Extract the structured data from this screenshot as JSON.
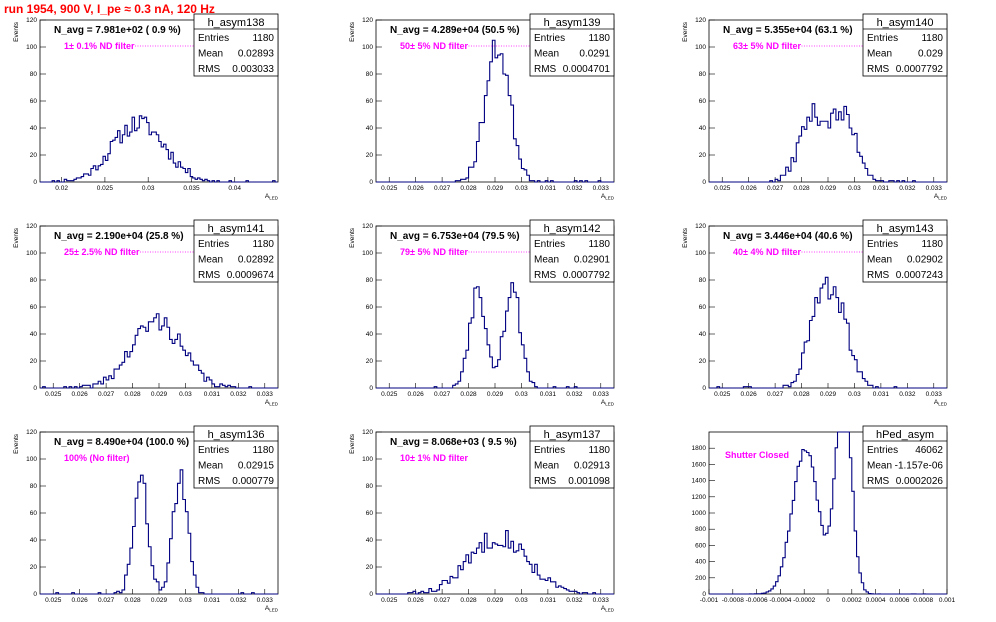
{
  "title": "run 1954,   900 V, I_pe ≈ 0.3 nA, 120 Hz",
  "colors": {
    "line": "#000080",
    "title": "#ff0000",
    "annotation": "#ff00ff"
  },
  "stat_labels": [
    "Entries",
    "Mean",
    "RMS"
  ],
  "chart_data": [
    {
      "type": "bar",
      "name": "h_asym138",
      "navg": "N_avg = 7.981e+02 ( 0.9 %)",
      "filter": "1± 0.1% ND filter",
      "entries": "1180",
      "mean": "0.02893",
      "rms": "0.003033",
      "xlabel": "A_LED",
      "ylabel": "Events",
      "xlim": [
        0.0175,
        0.045
      ],
      "ylim": [
        0,
        120
      ],
      "xticks": [
        0.02,
        0.025,
        0.03,
        0.035,
        0.04
      ],
      "xtick_labels": [
        "0.02",
        "0.025",
        "0.03",
        "0.035",
        "0.04"
      ],
      "yticks": [
        0,
        20,
        40,
        60,
        80,
        100,
        120
      ],
      "shape": {
        "mode": "single",
        "m": 0.02893,
        "s": 0.003033,
        "n": 1180,
        "bin": 0.00028,
        "seed": 11
      }
    },
    {
      "type": "bar",
      "name": "h_asym139",
      "navg": "N_avg = 4.289e+04 (50.5 %)",
      "filter": "50± 5% ND filter",
      "entries": "1180",
      "mean": "0.0291",
      "rms": "0.0004701",
      "xlabel": "A_LED",
      "ylabel": "Events",
      "xlim": [
        0.0245,
        0.0335
      ],
      "ylim": [
        0,
        120
      ],
      "xticks": [
        0.025,
        0.026,
        0.027,
        0.028,
        0.029,
        0.03,
        0.031,
        0.032,
        0.033
      ],
      "xtick_labels": [
        "0.025",
        "0.026",
        "0.027",
        "0.028",
        "0.029",
        "0.03",
        "0.031",
        "0.032",
        "0.033"
      ],
      "yticks": [
        0,
        20,
        40,
        60,
        80,
        100,
        120
      ],
      "shape": {
        "mode": "single",
        "m": 0.0291,
        "s": 0.00047,
        "n": 1180,
        "bin": 0.0001,
        "seed": 23
      }
    },
    {
      "type": "bar",
      "name": "h_asym140",
      "navg": "N_avg = 5.355e+04 (63.1 %)",
      "filter": "63± 5% ND filter",
      "entries": "1180",
      "mean": "0.029",
      "rms": "0.0007792",
      "xlabel": "A_LED",
      "ylabel": "Events",
      "xlim": [
        0.0245,
        0.0335
      ],
      "ylim": [
        0,
        120
      ],
      "xticks": [
        0.025,
        0.026,
        0.027,
        0.028,
        0.029,
        0.03,
        0.031,
        0.032,
        0.033
      ],
      "xtick_labels": [
        "0.025",
        "0.026",
        "0.027",
        "0.028",
        "0.029",
        "0.03",
        "0.031",
        "0.032",
        "0.033"
      ],
      "yticks": [
        0,
        20,
        40,
        60,
        80,
        100,
        120
      ],
      "shape": {
        "mode": "double",
        "m1": 0.0284,
        "m2": 0.0296,
        "s": 0.0005,
        "n": 1180,
        "bin": 0.0001,
        "seed": 37
      }
    },
    {
      "type": "bar",
      "name": "h_asym141",
      "navg": "N_avg = 2.190e+04 (25.8 %)",
      "filter": "25± 2.5% ND filter",
      "entries": "1180",
      "mean": "0.02892",
      "rms": "0.0009674",
      "xlabel": "A_LED",
      "ylabel": "Events",
      "xlim": [
        0.0245,
        0.0335
      ],
      "ylim": [
        0,
        120
      ],
      "xticks": [
        0.025,
        0.026,
        0.027,
        0.028,
        0.029,
        0.03,
        0.031,
        0.032,
        0.033
      ],
      "xtick_labels": [
        "0.025",
        "0.026",
        "0.027",
        "0.028",
        "0.029",
        "0.03",
        "0.031",
        "0.032",
        "0.033"
      ],
      "yticks": [
        0,
        20,
        40,
        60,
        80,
        100,
        120
      ],
      "shape": {
        "mode": "single",
        "m": 0.02892,
        "s": 0.00095,
        "n": 1180,
        "bin": 0.0001,
        "seed": 41
      }
    },
    {
      "type": "bar",
      "name": "h_asym142",
      "navg": "N_avg = 6.753e+04 (79.5 %)",
      "filter": "79± 5% ND filter",
      "entries": "1180",
      "mean": "0.02901",
      "rms": "0.0007792",
      "xlabel": "A_LED",
      "ylabel": "Events",
      "xlim": [
        0.0245,
        0.0335
      ],
      "ylim": [
        0,
        120
      ],
      "xticks": [
        0.025,
        0.026,
        0.027,
        0.028,
        0.029,
        0.03,
        0.031,
        0.032,
        0.033
      ],
      "xtick_labels": [
        "0.025",
        "0.026",
        "0.027",
        "0.028",
        "0.029",
        "0.03",
        "0.031",
        "0.032",
        "0.033"
      ],
      "yticks": [
        0,
        20,
        40,
        60,
        80,
        100,
        120
      ],
      "shape": {
        "mode": "double",
        "m1": 0.02835,
        "m2": 0.02965,
        "s": 0.00032,
        "n": 1180,
        "bin": 0.0001,
        "seed": 53
      }
    },
    {
      "type": "bar",
      "name": "h_asym143",
      "navg": "N_avg = 3.446e+04 (40.6 %)",
      "filter": "40± 4% ND filter",
      "entries": "1180",
      "mean": "0.02902",
      "rms": "0.0007243",
      "xlabel": "A_LED",
      "ylabel": "Events",
      "xlim": [
        0.0245,
        0.0335
      ],
      "ylim": [
        0,
        120
      ],
      "xticks": [
        0.025,
        0.026,
        0.027,
        0.028,
        0.029,
        0.03,
        0.031,
        0.032,
        0.033
      ],
      "xtick_labels": [
        "0.025",
        "0.026",
        "0.027",
        "0.028",
        "0.029",
        "0.03",
        "0.031",
        "0.032",
        "0.033"
      ],
      "yticks": [
        0,
        20,
        40,
        60,
        80,
        100,
        120
      ],
      "shape": {
        "mode": "double",
        "m1": 0.02865,
        "m2": 0.0294,
        "s": 0.00045,
        "n": 1180,
        "bin": 0.0001,
        "seed": 61
      }
    },
    {
      "type": "bar",
      "name": "h_asym136",
      "navg": "N_avg = 8.490e+04 (100.0 %)",
      "filter": "100% (No filter)",
      "entries": "1180",
      "mean": "0.02915",
      "rms": "0.000779",
      "xlabel": "A_LED",
      "ylabel": "Events",
      "xlim": [
        0.0245,
        0.0335
      ],
      "ylim": [
        0,
        120
      ],
      "xticks": [
        0.025,
        0.026,
        0.027,
        0.028,
        0.029,
        0.03,
        0.031,
        0.032,
        0.033
      ],
      "xtick_labels": [
        "0.025",
        "0.026",
        "0.027",
        "0.028",
        "0.029",
        "0.03",
        "0.031",
        "0.032",
        "0.033"
      ],
      "yticks": [
        0,
        20,
        40,
        60,
        80,
        100,
        120
      ],
      "shape": {
        "mode": "double",
        "m1": 0.0283,
        "m2": 0.0298,
        "s": 0.00028,
        "n": 1180,
        "bin": 0.0001,
        "seed": 71
      }
    },
    {
      "type": "bar",
      "name": "h_asym137",
      "navg": "N_avg = 8.068e+03 ( 9.5 %)",
      "filter": "10± 1% ND filter",
      "entries": "1180",
      "mean": "0.02913",
      "rms": "0.001098",
      "xlabel": "A_LED",
      "ylabel": "Events",
      "xlim": [
        0.0245,
        0.0335
      ],
      "ylim": [
        0,
        120
      ],
      "xticks": [
        0.025,
        0.026,
        0.027,
        0.028,
        0.029,
        0.03,
        0.031,
        0.032,
        0.033
      ],
      "xtick_labels": [
        "0.025",
        "0.026",
        "0.027",
        "0.028",
        "0.029",
        "0.03",
        "0.031",
        "0.032",
        "0.033"
      ],
      "yticks": [
        0,
        20,
        40,
        60,
        80,
        100,
        120
      ],
      "shape": {
        "mode": "single",
        "m": 0.02913,
        "s": 0.0011,
        "n": 1180,
        "bin": 0.0001,
        "seed": 83
      }
    },
    {
      "type": "bar",
      "name": "hPed_asym",
      "navg": "",
      "filter": "Shutter Closed",
      "entries": "46062",
      "mean": "-1.157e-06",
      "rms": "0.0002026",
      "xlabel": "",
      "ylabel": "",
      "xlim": [
        -0.001,
        0.001
      ],
      "ylim": [
        0,
        2000
      ],
      "xticks": [
        -0.001,
        -0.0008,
        -0.0006,
        -0.0004,
        -0.0002,
        0,
        0.0002,
        0.0004,
        0.0006,
        0.0008,
        0.001
      ],
      "xtick_labels": [
        "-0.001",
        "-0.0008",
        "-0.0006",
        "-0.0004",
        "-0.0002",
        "0",
        "0.0002",
        "0.0004",
        "0.0006",
        "0.0008",
        "0.001"
      ],
      "yticks": [
        0,
        200,
        400,
        600,
        800,
        1000,
        1200,
        1400,
        1600,
        1800
      ],
      "shape": {
        "mode": "ped",
        "m1": -0.00019,
        "m2": 0.00013,
        "s1": 0.00011,
        "s2": 6.5e-05,
        "n": 46062,
        "bin": 2e-05,
        "seed": 97
      }
    }
  ]
}
